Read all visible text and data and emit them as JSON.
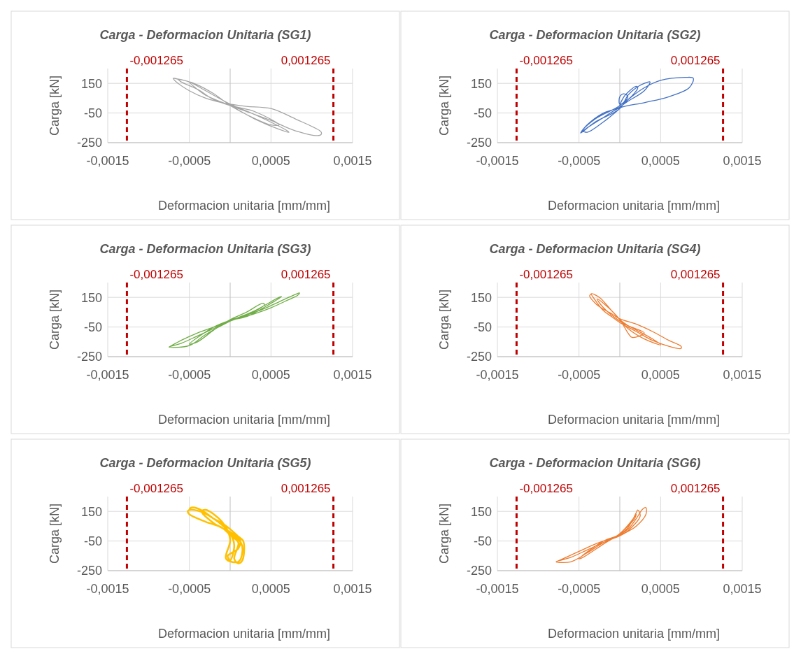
{
  "chart_data": [
    {
      "type": "line",
      "title": "Carga - Deformacion Unitaria (SG1)",
      "xlabel": "Deformacion unitaria [mm/mm]",
      "ylabel": "Carga [kN]",
      "xlim": [
        -0.0015,
        0.0015
      ],
      "ylim": [
        -250,
        250
      ],
      "xticks": [
        {
          "value": -0.0015,
          "label": "-0,0015"
        },
        {
          "value": -0.0005,
          "label": "-0,0005"
        },
        {
          "value": 0.0005,
          "label": "0,0005"
        },
        {
          "value": 0.0015,
          "label": "0,0015"
        }
      ],
      "yticks": [
        -250,
        -50,
        150
      ],
      "grid": true,
      "marker": "none",
      "line_style": "solid",
      "ref_lines": [
        {
          "axis": "x",
          "value": -0.001265,
          "label": "-0,001265",
          "color": "#c00000",
          "line_style": "dashed"
        },
        {
          "axis": "x",
          "value": 0.001265,
          "label": "0,001265",
          "color": "#c00000",
          "line_style": "dashed"
        }
      ],
      "series": [
        {
          "color": "#a5a5a5",
          "x": [
            -0.0007,
            -0.00068,
            -0.0005,
            -0.0003,
            -0.0001,
            0,
            0.0002,
            0.0005,
            0.0008,
            0.0011,
            0.00112,
            0.0011,
            0.0008,
            0.0005,
            0.0002,
            0,
            -0.0002,
            -0.0004,
            -0.0006,
            -0.00065,
            -0.0007,
            -0.0005,
            -0.0003,
            0,
            0.0003,
            0.0007,
            0.00072,
            0.0006,
            0.0003,
            0,
            -0.0003,
            -0.0005,
            -0.0004,
            -0.0002,
            0,
            0.0003,
            0.0006,
            0.0005,
            0.0002,
            0
          ],
          "values": [
            185,
            170,
            100,
            50,
            20,
            10,
            -5,
            -20,
            -90,
            -170,
            -185,
            -200,
            -170,
            -100,
            -40,
            0,
            40,
            110,
            160,
            180,
            185,
            160,
            100,
            10,
            -60,
            -170,
            -180,
            -160,
            -90,
            0,
            70,
            160,
            140,
            80,
            5,
            -40,
            -130,
            -130,
            -60,
            0
          ]
        }
      ]
    },
    {
      "type": "line",
      "title": "Carga - Deformacion Unitaria (SG2)",
      "xlabel": "Deformacion unitaria [mm/mm]",
      "ylabel": "Carga [kN]",
      "xlim": [
        -0.0015,
        0.0015
      ],
      "ylim": [
        -250,
        250
      ],
      "xticks": [
        {
          "value": -0.0015,
          "label": "-0,0015"
        },
        {
          "value": -0.0005,
          "label": "-0,0005"
        },
        {
          "value": 0.0005,
          "label": "0,0005"
        },
        {
          "value": 0.0015,
          "label": "0,0015"
        }
      ],
      "yticks": [
        -250,
        -50,
        150
      ],
      "grid": true,
      "marker": "none",
      "line_style": "solid",
      "ref_lines": [
        {
          "axis": "x",
          "value": -0.001265,
          "label": "-0,001265",
          "color": "#c00000",
          "line_style": "dashed"
        },
        {
          "axis": "x",
          "value": 0.001265,
          "label": "0,001265",
          "color": "#c00000",
          "line_style": "dashed"
        }
      ],
      "series": [
        {
          "color": "#4472c4",
          "x": [
            -0.00048,
            -0.0004,
            -0.0002,
            0,
            0.0003,
            0.0006,
            0.00085,
            0.0009,
            0.0008,
            0.0005,
            0.0003,
            0.0001,
            0,
            -0.0002,
            -0.0004,
            -0.00048,
            -0.0003,
            0,
            0.0001,
            0.0002,
            0.0003,
            0.00037,
            0.0003,
            0.0001,
            0,
            5e-05,
            0.0001,
            0.0002,
            0.00022,
            0.0001,
            0,
            0,
            5e-05,
            0.0001,
            0,
            -0.0003,
            -0.00045,
            -0.0004,
            -0.0002,
            0
          ],
          "values": [
            -185,
            -150,
            -80,
            -15,
            20,
            60,
            120,
            185,
            190,
            170,
            120,
            40,
            -10,
            -50,
            -130,
            -185,
            -110,
            -20,
            70,
            120,
            150,
            160,
            100,
            30,
            -5,
            60,
            90,
            130,
            120,
            40,
            10,
            60,
            80,
            60,
            0,
            -90,
            -170,
            -180,
            -110,
            -20
          ]
        }
      ]
    },
    {
      "type": "line",
      "title": "Carga - Deformacion Unitaria (SG3)",
      "xlabel": "Deformacion unitaria [mm/mm]",
      "ylabel": "Carga [kN]",
      "xlim": [
        -0.0015,
        0.0015
      ],
      "ylim": [
        -250,
        250
      ],
      "xticks": [
        {
          "value": -0.0015,
          "label": "-0,0015"
        },
        {
          "value": -0.0005,
          "label": "-0,0005"
        },
        {
          "value": 0.0005,
          "label": "0,0005"
        },
        {
          "value": 0.0015,
          "label": "0,0015"
        }
      ],
      "yticks": [
        -250,
        -50,
        150
      ],
      "grid": true,
      "marker": "none",
      "line_style": "solid",
      "ref_lines": [
        {
          "axis": "x",
          "value": -0.001265,
          "label": "-0,001265",
          "color": "#c00000",
          "line_style": "dashed"
        },
        {
          "axis": "x",
          "value": 0.001265,
          "label": "0,001265",
          "color": "#c00000",
          "line_style": "dashed"
        }
      ],
      "series": [
        {
          "color": "#70ad47",
          "x": [
            -0.00075,
            -0.0006,
            -0.0004,
            -0.0002,
            0,
            0.0002,
            0.0004,
            0.0006,
            0.0008,
            0.00085,
            0.00083,
            0.0007,
            0.0005,
            0.0003,
            0.0001,
            0,
            -0.0002,
            -0.0004,
            -0.0006,
            -0.00075,
            -0.0005,
            -0.0003,
            0,
            0.0003,
            0.0006,
            0.00063,
            0.0005,
            0.0002,
            0,
            -0.0002,
            -0.0005,
            -0.0004,
            -0.0002,
            0,
            0.0002,
            0.0004,
            0.00042,
            0.0002,
            0
          ],
          "values": [
            -185,
            -140,
            -90,
            -50,
            -10,
            30,
            70,
            120,
            170,
            180,
            165,
            130,
            80,
            40,
            10,
            -5,
            -60,
            -110,
            -160,
            -185,
            -175,
            -100,
            -10,
            60,
            150,
            155,
            110,
            20,
            -5,
            -50,
            -165,
            -150,
            -70,
            0,
            50,
            110,
            100,
            30,
            0
          ]
        }
      ]
    },
    {
      "type": "line",
      "title": "Carga - Deformacion Unitaria (SG4)",
      "xlabel": "Deformacion unitaria [mm/mm]",
      "ylabel": "Carga [kN]",
      "xlim": [
        -0.0015,
        0.0015
      ],
      "ylim": [
        -250,
        250
      ],
      "xticks": [
        {
          "value": -0.0015,
          "label": "-0,0015"
        },
        {
          "value": -0.0005,
          "label": "-0,0005"
        },
        {
          "value": 0.0005,
          "label": "0,0005"
        },
        {
          "value": 0.0015,
          "label": "0,0015"
        }
      ],
      "yticks": [
        -250,
        -50,
        150
      ],
      "grid": true,
      "marker": "none",
      "line_style": "solid",
      "ref_lines": [
        {
          "axis": "x",
          "value": -0.001265,
          "label": "-0,001265",
          "color": "#c00000",
          "line_style": "dashed"
        },
        {
          "axis": "x",
          "value": 0.001265,
          "label": "0,001265",
          "color": "#c00000",
          "line_style": "dashed"
        }
      ],
      "series": [
        {
          "color": "#ed7d31",
          "x": [
            -0.00035,
            -0.00037,
            -0.0003,
            -0.0002,
            -0.0001,
            0,
            0.0002,
            0.0004,
            0.0006,
            0.00075,
            0.00075,
            0.0006,
            0.0004,
            0.0002,
            0,
            -0.0001,
            -0.0002,
            -0.0003,
            -0.00035,
            -0.00025,
            -0.0001,
            0,
            0.0001,
            0.0003,
            0.0005,
            0.0004,
            0.0002,
            0,
            -0.0002,
            -0.00028,
            -0.0002,
            0,
            0.0001,
            0.00015,
            0.0003,
            0.0001,
            0
          ],
          "values": [
            175,
            160,
            110,
            70,
            40,
            5,
            -30,
            -80,
            -140,
            -180,
            -195,
            -180,
            -140,
            -80,
            -20,
            20,
            60,
            130,
            175,
            150,
            60,
            0,
            -60,
            -130,
            -170,
            -130,
            -70,
            -10,
            80,
            140,
            110,
            0,
            -90,
            -120,
            -90,
            -40,
            0
          ]
        }
      ]
    },
    {
      "type": "line",
      "title": "Carga - Deformacion Unitaria (SG5)",
      "xlabel": "Deformacion unitaria [mm/mm]",
      "ylabel": "Carga [kN]",
      "xlim": [
        -0.0015,
        0.0015
      ],
      "ylim": [
        -250,
        250
      ],
      "xticks": [
        {
          "value": -0.0015,
          "label": "-0,0015"
        },
        {
          "value": -0.0005,
          "label": "-0,0005"
        },
        {
          "value": 0.0005,
          "label": "0,0005"
        },
        {
          "value": 0.0015,
          "label": "0,0015"
        }
      ],
      "yticks": [
        -250,
        -50,
        150
      ],
      "grid": true,
      "marker": "none",
      "line_style": "solid",
      "ref_lines": [
        {
          "axis": "x",
          "value": -0.001265,
          "label": "-0,001265",
          "color": "#c00000",
          "line_style": "dashed"
        },
        {
          "axis": "x",
          "value": 0.001265,
          "label": "0,001265",
          "color": "#c00000",
          "line_style": "dashed"
        }
      ],
      "series": [
        {
          "color": "#ffc000",
          "x": [
            -0.0005,
            -0.00048,
            -0.0004,
            -0.0003,
            -0.0002,
            -0.0001,
            0,
            0.0001,
            0.00016,
            0.00015,
            0.0001,
            5e-05,
            0.0001,
            0,
            -0.0001,
            -0.0003,
            -0.0005,
            -0.00052,
            -0.0005,
            -0.0004,
            -0.0002,
            0,
            5e-05,
            0,
            -3e-05,
            0.0001,
            0.00012,
            0,
            -0.0002,
            -0.00035,
            -0.0003,
            -0.0001,
            0,
            -5e-05,
            0.0001,
            0.00015,
            0.00013,
            0
          ],
          "values": [
            160,
            175,
            170,
            140,
            100,
            70,
            30,
            -20,
            -50,
            -180,
            -200,
            -170,
            -60,
            -10,
            40,
            80,
            130,
            150,
            160,
            155,
            100,
            0,
            -80,
            -180,
            -150,
            -100,
            -40,
            10,
            70,
            150,
            160,
            80,
            -40,
            -170,
            -190,
            -120,
            -60,
            0
          ]
        }
      ]
    },
    {
      "type": "line",
      "title": "Carga - Deformacion Unitaria (SG6)",
      "xlabel": "Deformacion unitaria [mm/mm]",
      "ylabel": "Carga [kN]",
      "xlim": [
        -0.0015,
        0.0015
      ],
      "ylim": [
        -250,
        250
      ],
      "xticks": [
        {
          "value": -0.0015,
          "label": "-0,0015"
        },
        {
          "value": -0.0005,
          "label": "-0,0005"
        },
        {
          "value": 0.0005,
          "label": "0,0005"
        },
        {
          "value": 0.0015,
          "label": "0,0015"
        }
      ],
      "yticks": [
        -250,
        -50,
        150
      ],
      "grid": true,
      "marker": "none",
      "line_style": "solid",
      "ref_lines": [
        {
          "axis": "x",
          "value": -0.001265,
          "label": "-0,001265",
          "color": "#c00000",
          "line_style": "dashed"
        },
        {
          "axis": "x",
          "value": 0.001265,
          "label": "0,001265",
          "color": "#c00000",
          "line_style": "dashed"
        }
      ],
      "series": [
        {
          "color": "#ed7d31",
          "x": [
            -0.00078,
            -0.0007,
            -0.0005,
            -0.0003,
            -0.0001,
            0,
            0.0001,
            0.0002,
            0.00028,
            0.00032,
            0.00032,
            0.0002,
            0.0001,
            0,
            -0.0002,
            -0.0004,
            -0.0006,
            -0.00078,
            -0.0006,
            -0.0004,
            -0.0002,
            0,
            0.0001,
            0.0002,
            0.00022,
            0.00025,
            0.0001,
            0,
            -0.0002,
            -0.0005,
            -0.00045,
            -0.0002,
            0,
            0.00015,
            0.0002,
            0.00018,
            0
          ],
          "values": [
            -190,
            -170,
            -120,
            -70,
            -30,
            -5,
            30,
            100,
            165,
            175,
            130,
            50,
            15,
            -15,
            -60,
            -110,
            -160,
            -190,
            -190,
            -130,
            -60,
            -5,
            40,
            140,
            160,
            120,
            20,
            -10,
            -50,
            -170,
            -160,
            -70,
            0,
            90,
            130,
            100,
            0
          ]
        }
      ]
    }
  ]
}
